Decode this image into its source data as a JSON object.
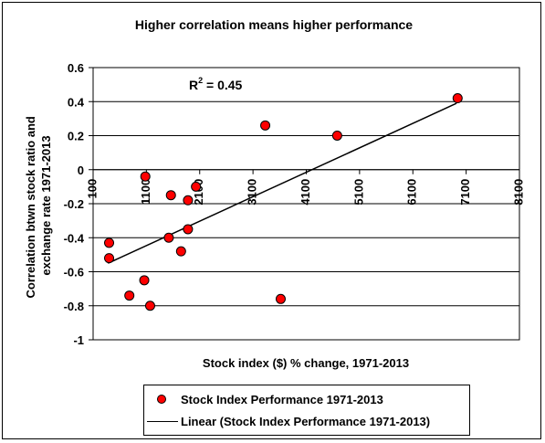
{
  "chart_data": {
    "type": "scatter",
    "title": "Higher correlation means higher performance",
    "xlabel": "Stock index ($) % change, 1971-2013",
    "ylabel": [
      "Correlation btwn stock ratio and",
      "exchange rate 1971-2013"
    ],
    "xlim": [
      100,
      8100
    ],
    "ylim": [
      -1,
      0.6
    ],
    "xticks": [
      "100",
      "1100",
      "2100",
      "3100",
      "4100",
      "5100",
      "6100",
      "7100",
      "8100"
    ],
    "yticks": [
      "0.6",
      "0.4",
      "0.2",
      "0",
      "-0.2",
      "-0.4",
      "-0.6",
      "-0.8",
      "-1"
    ],
    "ytick_values": [
      0.6,
      0.4,
      0.2,
      0,
      -0.2,
      -0.4,
      -0.6,
      -0.8,
      -1
    ],
    "xtick_values": [
      100,
      1100,
      2100,
      3100,
      4100,
      5100,
      6100,
      7100,
      8100
    ],
    "gridlines": "horizontal",
    "annotation": {
      "text": "R",
      "sup": "2",
      "rest": " = 0.45"
    },
    "series": [
      {
        "name": "Stock Index Performance 1971-2013",
        "color": "#ff0000",
        "points": [
          [
            400,
            -0.43
          ],
          [
            400,
            -0.52
          ],
          [
            780,
            -0.74
          ],
          [
            1060,
            -0.65
          ],
          [
            1080,
            -0.04
          ],
          [
            1170,
            -0.8
          ],
          [
            1520,
            -0.4
          ],
          [
            1560,
            -0.15
          ],
          [
            1750,
            -0.48
          ],
          [
            1880,
            -0.35
          ],
          [
            1880,
            -0.18
          ],
          [
            2030,
            -0.1
          ],
          [
            3330,
            0.26
          ],
          [
            3620,
            -0.76
          ],
          [
            4680,
            0.2
          ],
          [
            6940,
            0.42
          ]
        ]
      }
    ],
    "trendline": {
      "name": "Linear (Stock Index Performance 1971-2013)",
      "x": [
        380,
        6920
      ],
      "y": [
        -0.55,
        0.39
      ]
    }
  }
}
